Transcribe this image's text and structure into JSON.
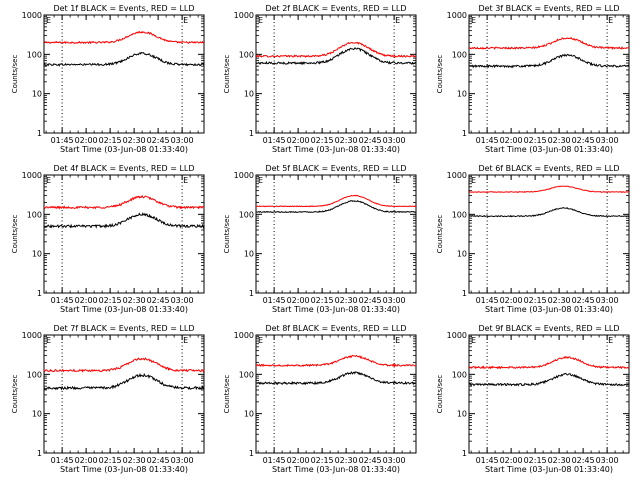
{
  "page": {
    "background": "#ffffff"
  },
  "colors": {
    "events": "#000000",
    "lld": "#ff0000",
    "axis": "#000000"
  },
  "chart_data": [
    {
      "type": "line",
      "title": "Det 1f BLACK = Events, RED = LLD",
      "xlabel": "Start Time (03-Jun-08 01:33:40)",
      "ylabel": "Counts/sec",
      "yscale": "log",
      "ylim": [
        1,
        1000
      ],
      "xlim": [
        "01:33:40",
        "03:13:40"
      ],
      "xticks": [
        "01:45",
        "02:00",
        "02:15",
        "02:30",
        "02:45",
        "03:00"
      ],
      "yticks": [
        "1",
        "10",
        "100",
        "1000"
      ],
      "vlines": [
        "01:45",
        "03:00"
      ],
      "corner_labels": {
        "left": "E",
        "right": "E"
      },
      "series": [
        {
          "name": "LLD",
          "color": "#ff0000",
          "base": 200,
          "peak": 370,
          "peak_time": "02:35",
          "noise": 0.05
        },
        {
          "name": "Events",
          "color": "#000000",
          "base": 55,
          "peak": 105,
          "peak_time": "02:35",
          "noise": 0.06
        }
      ]
    },
    {
      "type": "line",
      "title": "Det 2f BLACK = Events, RED = LLD",
      "xlabel": "Start Time (03-Jun-08 01:33:40)",
      "ylabel": "Counts/sec",
      "yscale": "log",
      "ylim": [
        1,
        1000
      ],
      "xlim": [
        "01:33:40",
        "03:13:40"
      ],
      "xticks": [
        "01:45",
        "02:00",
        "02:15",
        "02:30",
        "02:45",
        "03:00"
      ],
      "yticks": [
        "1",
        "10",
        "100",
        "1000"
      ],
      "vlines": [
        "01:45",
        "03:00"
      ],
      "corner_labels": {
        "left": "E",
        "right": "E"
      },
      "series": [
        {
          "name": "LLD",
          "color": "#ff0000",
          "base": 90,
          "peak": 200,
          "peak_time": "02:35",
          "noise": 0.05
        },
        {
          "name": "Events",
          "color": "#000000",
          "base": 60,
          "peak": 140,
          "peak_time": "02:35",
          "noise": 0.06
        }
      ]
    },
    {
      "type": "line",
      "title": "Det 3f BLACK = Events, RED = LLD",
      "xlabel": "Start Time (03-Jun-08 01:33:40)",
      "ylabel": "Counts/sec",
      "yscale": "log",
      "ylim": [
        1,
        1000
      ],
      "xlim": [
        "01:33:40",
        "03:13:40"
      ],
      "xticks": [
        "01:45",
        "02:00",
        "02:15",
        "02:30",
        "02:45",
        "03:00"
      ],
      "yticks": [
        "1",
        "10",
        "100",
        "1000"
      ],
      "vlines": [
        "01:45",
        "03:00"
      ],
      "corner_labels": {
        "left": "E",
        "right": "E"
      },
      "series": [
        {
          "name": "LLD",
          "color": "#ff0000",
          "base": 145,
          "peak": 260,
          "peak_time": "02:35",
          "noise": 0.05
        },
        {
          "name": "Events",
          "color": "#000000",
          "base": 50,
          "peak": 95,
          "peak_time": "02:35",
          "noise": 0.06
        }
      ]
    },
    {
      "type": "line",
      "title": "Det 4f BLACK = Events, RED = LLD",
      "xlabel": "Start Time (03-Jun-08 01:33:40)",
      "ylabel": "Counts/sec",
      "yscale": "log",
      "ylim": [
        1,
        1000
      ],
      "xlim": [
        "01:33:40",
        "03:13:40"
      ],
      "xticks": [
        "01:45",
        "02:00",
        "02:15",
        "02:30",
        "02:45",
        "03:00"
      ],
      "yticks": [
        "1",
        "10",
        "100",
        "1000"
      ],
      "vlines": [
        "01:45",
        "03:00"
      ],
      "corner_labels": {
        "left": "E",
        "right": "E"
      },
      "series": [
        {
          "name": "LLD",
          "color": "#ff0000",
          "base": 150,
          "peak": 280,
          "peak_time": "02:35",
          "noise": 0.06
        },
        {
          "name": "Events",
          "color": "#000000",
          "base": 50,
          "peak": 100,
          "peak_time": "02:35",
          "noise": 0.07
        }
      ]
    },
    {
      "type": "line",
      "title": "Det 5f BLACK = Events, RED = LLD",
      "xlabel": "Start Time (03-Jun-08 01:33:40)",
      "ylabel": "Counts/sec",
      "yscale": "log",
      "ylim": [
        1,
        1000
      ],
      "xlim": [
        "01:33:40",
        "03:13:40"
      ],
      "xticks": [
        "01:45",
        "02:00",
        "02:15",
        "02:30",
        "02:45",
        "03:00"
      ],
      "yticks": [
        "1",
        "10",
        "100",
        "1000"
      ],
      "vlines": [
        "01:45",
        "03:00"
      ],
      "corner_labels": {
        "left": "E",
        "right": "E"
      },
      "series": [
        {
          "name": "LLD",
          "color": "#ff0000",
          "base": 160,
          "peak": 300,
          "peak_time": "02:35",
          "noise": 0.02
        },
        {
          "name": "Events",
          "color": "#000000",
          "base": 115,
          "peak": 220,
          "peak_time": "02:35",
          "noise": 0.03
        }
      ]
    },
    {
      "type": "line",
      "title": "Det 6f BLACK = Events, RED = LLD",
      "xlabel": "Start Time (03-Jun-08 01:33:40)",
      "ylabel": "Counts/sec",
      "yscale": "log",
      "ylim": [
        1,
        1000
      ],
      "xlim": [
        "01:33:40",
        "03:13:40"
      ],
      "xticks": [
        "01:45",
        "02:00",
        "02:15",
        "02:30",
        "02:45",
        "03:00"
      ],
      "yticks": [
        "1",
        "10",
        "100",
        "1000"
      ],
      "vlines": [
        "01:45",
        "03:00"
      ],
      "corner_labels": {
        "left": "E",
        "right": "E"
      },
      "series": [
        {
          "name": "LLD",
          "color": "#ff0000",
          "base": 370,
          "peak": 520,
          "peak_time": "02:33",
          "noise": 0.02
        },
        {
          "name": "Events",
          "color": "#000000",
          "base": 90,
          "peak": 145,
          "peak_time": "02:33",
          "noise": 0.03
        }
      ]
    },
    {
      "type": "line",
      "title": "Det 7f BLACK = Events, RED = LLD",
      "xlabel": "Start Time (03-Jun-08 01:33:40)",
      "ylabel": "Counts/sec",
      "yscale": "log",
      "ylim": [
        1,
        1000
      ],
      "xlim": [
        "01:33:40",
        "03:13:40"
      ],
      "xticks": [
        "01:45",
        "02:00",
        "02:15",
        "02:30",
        "02:45",
        "03:00"
      ],
      "yticks": [
        "1",
        "10",
        "100",
        "1000"
      ],
      "vlines": [
        "01:45",
        "03:00"
      ],
      "corner_labels": {
        "left": "E",
        "right": "E"
      },
      "series": [
        {
          "name": "LLD",
          "color": "#ff0000",
          "base": 125,
          "peak": 250,
          "peak_time": "02:35",
          "noise": 0.06
        },
        {
          "name": "Events",
          "color": "#000000",
          "base": 45,
          "peak": 95,
          "peak_time": "02:35",
          "noise": 0.07
        }
      ]
    },
    {
      "type": "line",
      "title": "Det 8f BLACK = Events, RED = LLD",
      "xlabel": "Start Time (03-Jun-08 01:33:40)",
      "ylabel": "Counts/sec",
      "yscale": "log",
      "ylim": [
        1,
        1000
      ],
      "xlim": [
        "01:33:40",
        "03:13:40"
      ],
      "xticks": [
        "01:45",
        "02:00",
        "02:15",
        "02:30",
        "02:45",
        "03:00"
      ],
      "yticks": [
        "1",
        "10",
        "100",
        "1000"
      ],
      "vlines": [
        "01:45",
        "03:00"
      ],
      "corner_labels": {
        "left": "E",
        "right": "E"
      },
      "series": [
        {
          "name": "LLD",
          "color": "#ff0000",
          "base": 170,
          "peak": 290,
          "peak_time": "02:35",
          "noise": 0.05
        },
        {
          "name": "Events",
          "color": "#000000",
          "base": 60,
          "peak": 110,
          "peak_time": "02:35",
          "noise": 0.06
        }
      ]
    },
    {
      "type": "line",
      "title": "Det 9f BLACK = Events, RED = LLD",
      "xlabel": "Start Time (03-Jun-08 01:33:40)",
      "ylabel": "Counts/sec",
      "yscale": "log",
      "ylim": [
        1,
        1000
      ],
      "xlim": [
        "01:33:40",
        "03:13:40"
      ],
      "xticks": [
        "01:45",
        "02:00",
        "02:15",
        "02:30",
        "02:45",
        "03:00"
      ],
      "yticks": [
        "1",
        "10",
        "100",
        "1000"
      ],
      "vlines": [
        "01:45",
        "03:00"
      ],
      "corner_labels": {
        "left": "E",
        "right": "E"
      },
      "series": [
        {
          "name": "LLD",
          "color": "#ff0000",
          "base": 150,
          "peak": 270,
          "peak_time": "02:35",
          "noise": 0.05
        },
        {
          "name": "Events",
          "color": "#000000",
          "base": 55,
          "peak": 100,
          "peak_time": "02:35",
          "noise": 0.06
        }
      ]
    }
  ]
}
